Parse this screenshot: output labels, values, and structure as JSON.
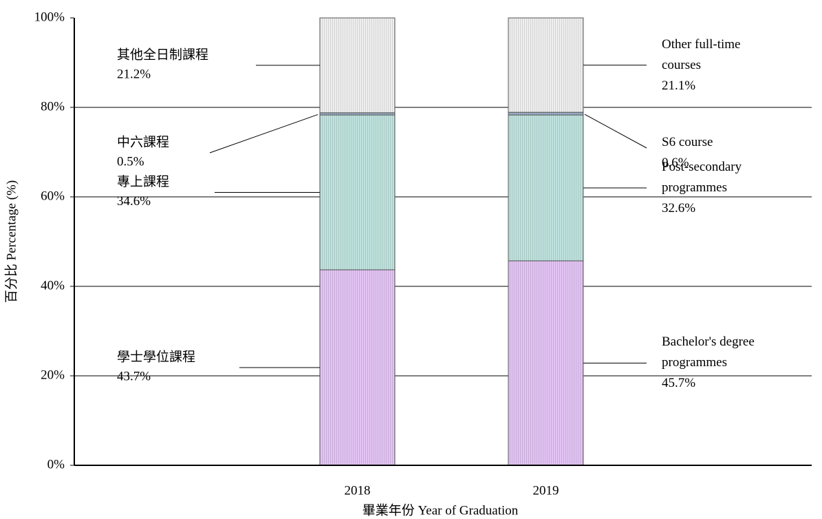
{
  "chart_data": {
    "type": "stacked_bar",
    "x_label": "畢業年份 Year of Graduation",
    "y_label": "百分比 Percentage (%)",
    "categories": [
      "2018",
      "2019"
    ],
    "series": [
      {
        "name": "Bachelor's degree programmes",
        "name_zh": "學士學位課程",
        "color": "#e3c4f4",
        "values": [
          43.7,
          45.7
        ],
        "value_labels": [
          "43.7%",
          "45.7%"
        ]
      },
      {
        "name": "Post-secondary programmes",
        "name_zh": "專上課程",
        "color": "#bfe3de",
        "values": [
          34.6,
          32.6
        ],
        "value_labels": [
          "34.6%",
          "32.6%"
        ]
      },
      {
        "name": "S6 course",
        "name_zh": "中六課程",
        "color": "#9fb3cc",
        "values": [
          0.5,
          0.6
        ],
        "value_labels": [
          "0.5%",
          "0.6%"
        ]
      },
      {
        "name": "Other full-time courses",
        "name_zh": "其他全日制課程",
        "color": "#efefef",
        "values": [
          21.2,
          21.1
        ],
        "value_labels": [
          "21.2%",
          "21.1%"
        ]
      }
    ],
    "ylim": [
      0,
      100
    ],
    "yticks": [
      {
        "value": 0,
        "label": "0%"
      },
      {
        "value": 20,
        "label": "20%"
      },
      {
        "value": 40,
        "label": "40%"
      },
      {
        "value": 60,
        "label": "60%"
      },
      {
        "value": 80,
        "label": "80%"
      },
      {
        "value": 100,
        "label": "100%"
      }
    ],
    "grid": true
  }
}
